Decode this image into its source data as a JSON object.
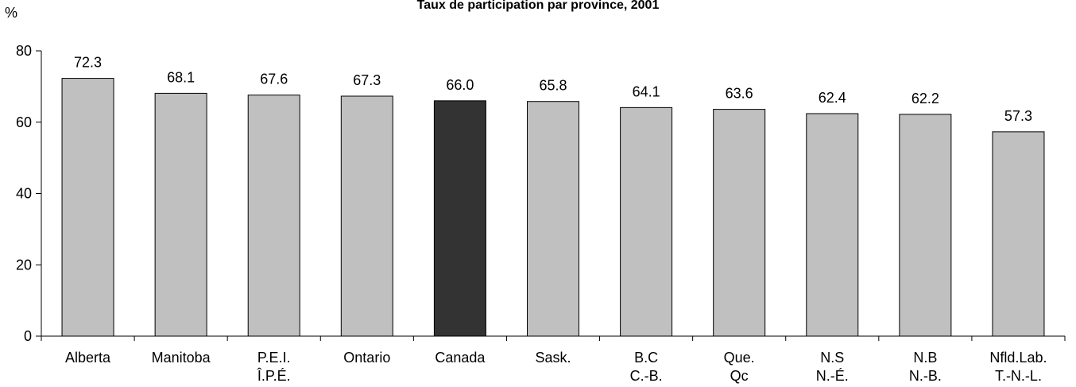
{
  "chart_data": {
    "type": "bar",
    "title": "Taux de participation par province, 2001",
    "ylabel": "%",
    "xlabel": "",
    "ylim": [
      0,
      80
    ],
    "yticks": [
      0,
      20,
      40,
      60,
      80
    ],
    "grid": false,
    "categories": [
      [
        "Alberta"
      ],
      [
        "Manitoba"
      ],
      [
        "P.E.I.",
        "Î.P.É."
      ],
      [
        "Ontario"
      ],
      [
        "Canada"
      ],
      [
        "Sask."
      ],
      [
        "B.C",
        "C.-B."
      ],
      [
        "Que.",
        "Qc"
      ],
      [
        "N.S",
        "N.-É."
      ],
      [
        "N.B",
        "N.-B."
      ],
      [
        "Nfld.Lab.",
        "T.-N.-L."
      ]
    ],
    "values": [
      72.3,
      68.1,
      67.6,
      67.3,
      66.0,
      65.8,
      64.1,
      63.6,
      62.4,
      62.2,
      57.3
    ],
    "value_labels": [
      "72.3",
      "68.1",
      "67.6",
      "67.3",
      "66.0",
      "65.8",
      "64.1",
      "63.6",
      "62.4",
      "62.2",
      "57.3"
    ],
    "highlight_index": 4,
    "colors": {
      "bar": "#c0c0c0",
      "highlight": "#333333",
      "stroke": "#000000"
    }
  }
}
